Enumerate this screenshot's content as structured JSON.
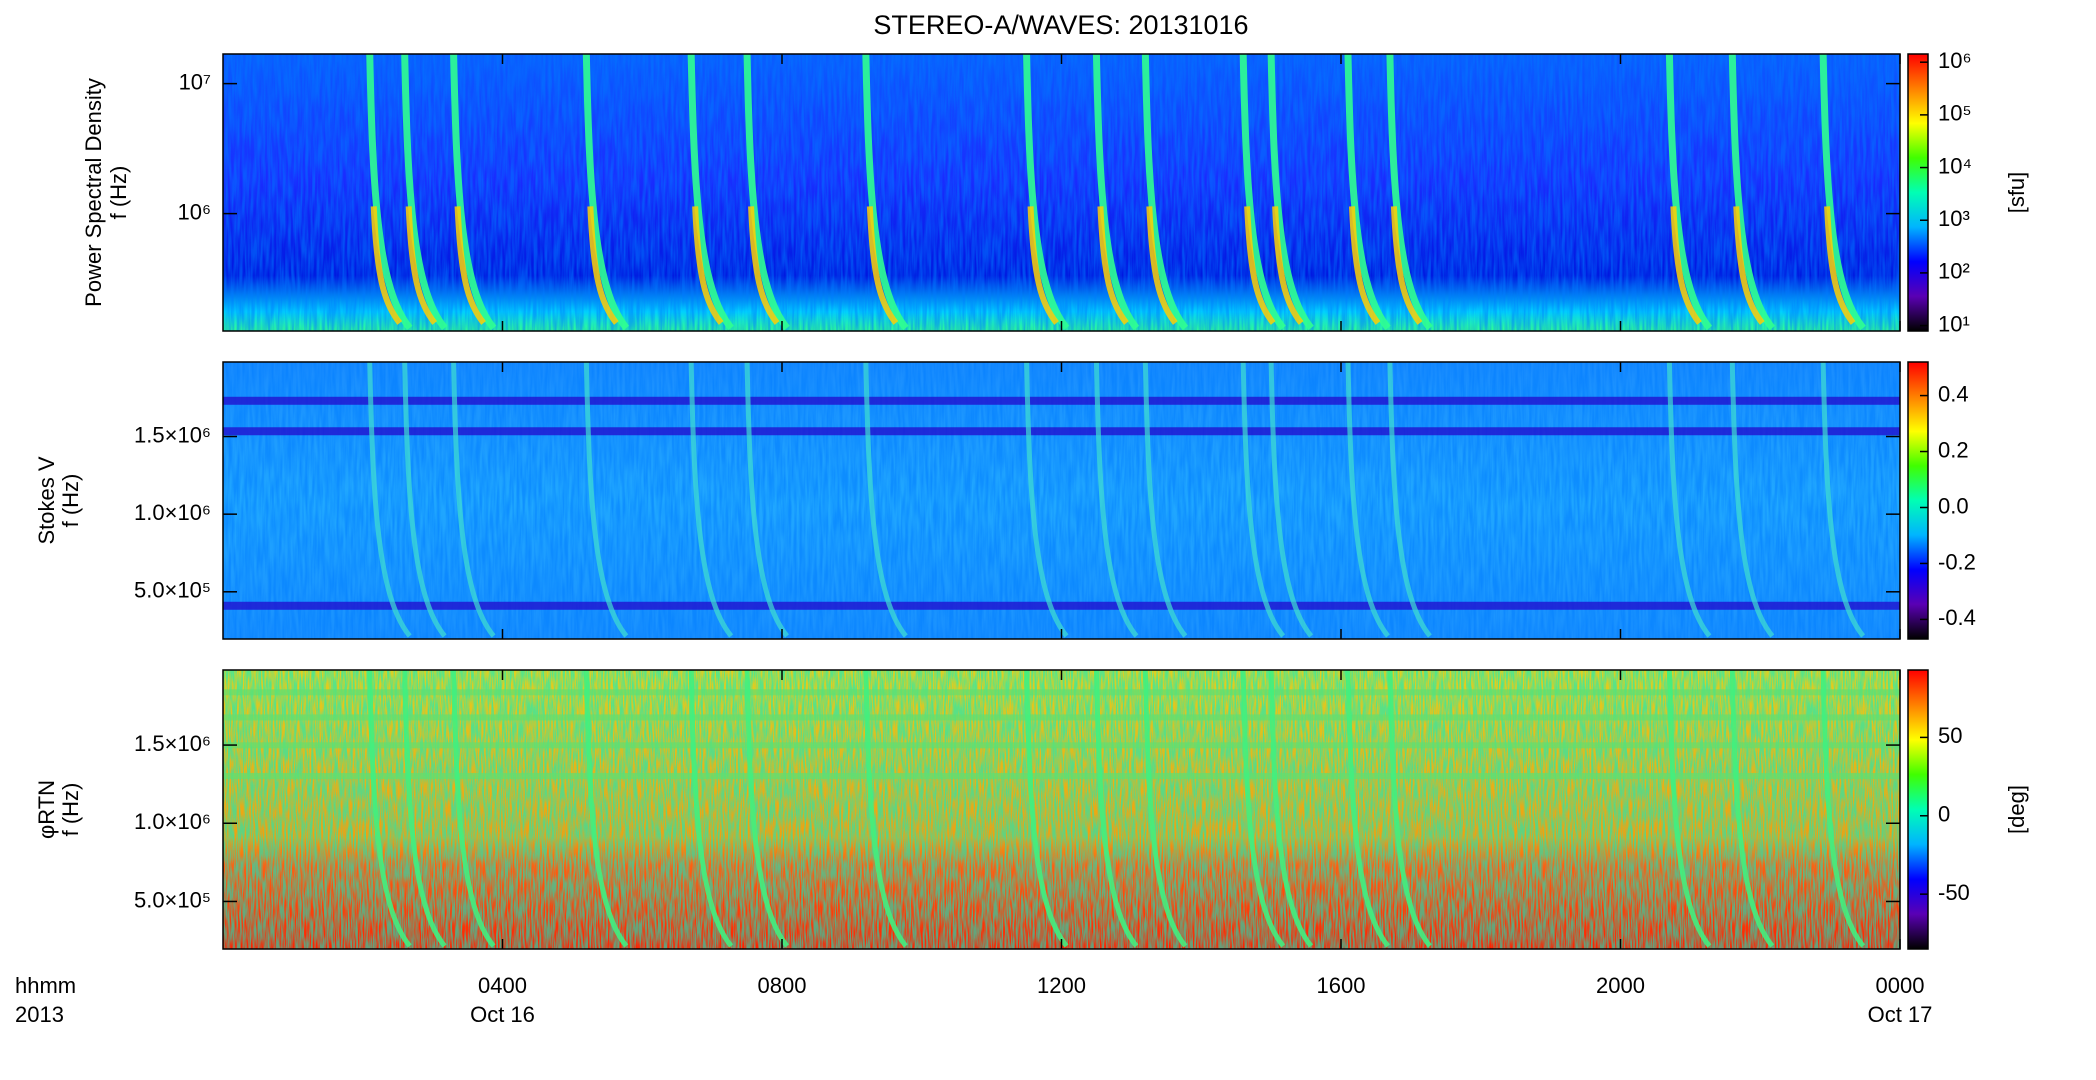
{
  "chart_data": {
    "type": "spectrogram",
    "title": "STEREO-A/WAVES: 20131016",
    "x_label": "hhmm",
    "x_label_year": "2013",
    "xlim": [
      0,
      24
    ],
    "xticks": [
      {
        "value": 4,
        "label": "0400"
      },
      {
        "value": 8,
        "label": "0800"
      },
      {
        "value": 12,
        "label": "1200"
      },
      {
        "value": 16,
        "label": "1600"
      },
      {
        "value": 20,
        "label": "2000"
      },
      {
        "value": 24,
        "label": "0000"
      }
    ],
    "date_labels": [
      {
        "value": 4,
        "label": "Oct 16"
      },
      {
        "value": 24,
        "label": "Oct 17"
      }
    ],
    "colormap": [
      "#000000",
      "#5a00b4",
      "#0000ff",
      "#00b4ff",
      "#00ffb4",
      "#40ff00",
      "#ffff00",
      "#ff8000",
      "#ff0000"
    ],
    "bursts": [
      2.1,
      2.6,
      3.3,
      5.2,
      6.7,
      7.5,
      9.2,
      11.5,
      12.5,
      13.2,
      14.6,
      15.0,
      16.1,
      16.7,
      20.7,
      21.6,
      22.9
    ],
    "panels": [
      {
        "ylabel": [
          "Power Spectral Density",
          "f (Hz)"
        ],
        "ylog": true,
        "ylim": [
          125000,
          16900000
        ],
        "yticks": [
          {
            "value": 1000000,
            "label": "10⁶"
          },
          {
            "value": 10000000,
            "label": "10⁷"
          }
        ],
        "clog": true,
        "clim": [
          7.9,
          1430000
        ],
        "cticks": [
          {
            "value": 10,
            "label": "10¹"
          },
          {
            "value": 100,
            "label": "10²"
          },
          {
            "value": 1000,
            "label": "10³"
          },
          {
            "value": 10000,
            "label": "10⁴"
          },
          {
            "value": 100000,
            "label": "10⁵"
          },
          {
            "value": 1000000,
            "label": "10⁶"
          }
        ],
        "cbar_label": "[sfu]"
      },
      {
        "ylabel": [
          "Stokes V",
          "f (Hz)"
        ],
        "ylog": false,
        "ylim": [
          196000,
          1980000
        ],
        "yticks": [
          {
            "value": 500000,
            "label": "5.0×10⁵"
          },
          {
            "value": 1000000,
            "label": "1.0×10⁶"
          },
          {
            "value": 1500000,
            "label": "1.5×10⁶"
          }
        ],
        "clog": false,
        "clim": [
          -0.47,
          0.52
        ],
        "cticks": [
          -0.4,
          -0.2,
          {
            "value": 0,
            "label": "0.0"
          },
          0.2,
          0.4
        ]
      },
      {
        "ylabel": [
          "φRTN",
          "f (Hz)"
        ],
        "ylog": false,
        "ylim": [
          196000,
          1980000
        ],
        "yticks": [
          {
            "value": 500000,
            "label": "5.0×10⁵"
          },
          {
            "value": 1000000,
            "label": "1.0×10⁶"
          },
          {
            "value": 1500000,
            "label": "1.5×10⁶"
          }
        ],
        "clog": false,
        "clim": [
          -85,
          93
        ],
        "cticks": [
          -50,
          0,
          50
        ],
        "cbar_label": "[deg]"
      }
    ]
  }
}
